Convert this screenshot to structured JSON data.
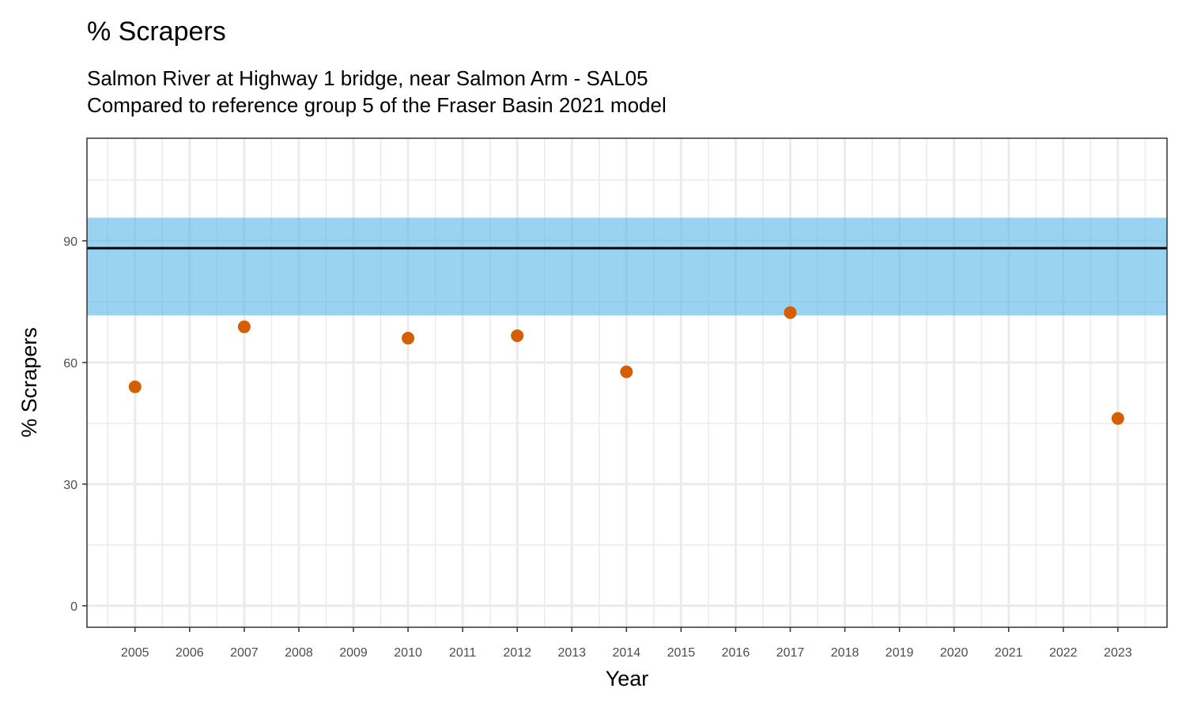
{
  "chart_data": {
    "type": "scatter",
    "title": "% Scrapers",
    "subtitle_lines": [
      "Salmon River at Highway 1 bridge, near Salmon Arm - SAL05",
      "Compared to reference group 5 of the Fraser Basin 2021 model"
    ],
    "xlabel": "Year",
    "ylabel": "% Scrapers",
    "xlim": [
      2004.12,
      2023.9
    ],
    "ylim": [
      -5.3,
      115.3
    ],
    "x_ticks": [
      2005,
      2006,
      2007,
      2008,
      2009,
      2010,
      2011,
      2012,
      2013,
      2014,
      2015,
      2016,
      2017,
      2018,
      2019,
      2020,
      2021,
      2022,
      2023
    ],
    "y_ticks": [
      0,
      30,
      60,
      90
    ],
    "grid": true,
    "reference_band": {
      "lower": 71.6,
      "upper": 95.7,
      "color": "#56B4E9"
    },
    "reference_line": {
      "value": 88.2,
      "color": "#000000"
    },
    "series": [
      {
        "name": "% Scrapers",
        "color": "#D55E00",
        "points": [
          {
            "x": 2005,
            "y": 54.0
          },
          {
            "x": 2007,
            "y": 68.8
          },
          {
            "x": 2010,
            "y": 66.0
          },
          {
            "x": 2012,
            "y": 66.6
          },
          {
            "x": 2014,
            "y": 57.7
          },
          {
            "x": 2017,
            "y": 72.3
          },
          {
            "x": 2023,
            "y": 46.2
          }
        ]
      }
    ]
  }
}
